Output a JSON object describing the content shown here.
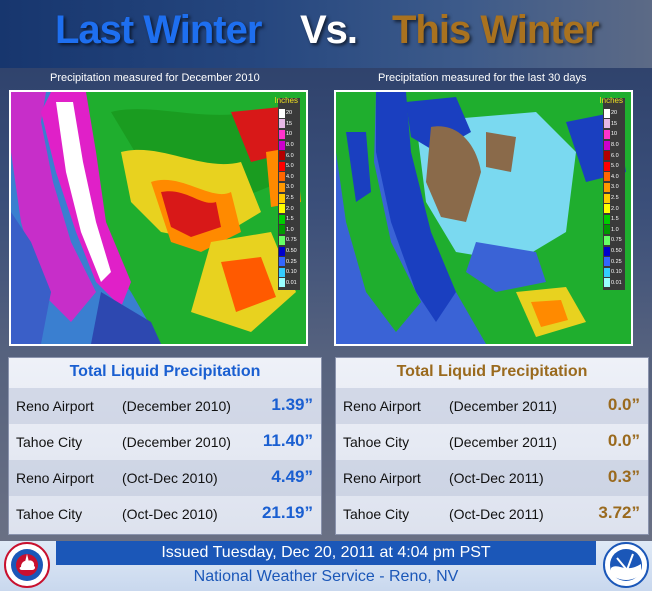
{
  "header": {
    "left_title": "Last Winter",
    "vs_label": "Vs.",
    "right_title": "This Winter"
  },
  "maps": {
    "left_caption": "Precipitation measured for December 2010",
    "right_caption": "Precipitation measured for the last 30 days",
    "legend_title": "Inches",
    "legend_levels": [
      "20",
      "15",
      "10",
      "8.0",
      "6.0",
      "5.0",
      "4.0",
      "3.0",
      "2.5",
      "2.0",
      "1.5",
      "1.0",
      "0.75",
      "0.50",
      "0.25",
      "0.10",
      "0.01"
    ],
    "legend_colors": [
      "#ffffff",
      "#e6b8e6",
      "#ff33cc",
      "#cc00cc",
      "#b30000",
      "#ff0000",
      "#ff6600",
      "#ff9900",
      "#ffcc00",
      "#ffff00",
      "#00cc00",
      "#009900",
      "#66ff66",
      "#0000cc",
      "#3366ff",
      "#33ccff",
      "#99ffff"
    ]
  },
  "left_panel": {
    "title": "Total Liquid Precipitation",
    "rows": [
      {
        "location": "Reno Airport",
        "period": "(December 2010)",
        "value": "1.39”"
      },
      {
        "location": "Tahoe City",
        "period": "(December 2010)",
        "value": "11.40”"
      },
      {
        "location": "Reno Airport",
        "period": "(Oct-Dec 2010)",
        "value": "4.49”"
      },
      {
        "location": "Tahoe City",
        "period": "(Oct-Dec 2010)",
        "value": "21.19”"
      }
    ]
  },
  "right_panel": {
    "title": "Total Liquid Precipitation",
    "rows": [
      {
        "location": "Reno Airport",
        "period": "(December 2011)",
        "value": "0.0”"
      },
      {
        "location": "Tahoe City",
        "period": "(December 2011)",
        "value": "0.0”"
      },
      {
        "location": "Reno Airport",
        "period": "(Oct-Dec 2011)",
        "value": "0.3”"
      },
      {
        "location": "Tahoe City",
        "period": "(Oct-Dec 2011)",
        "value": "3.72”"
      }
    ]
  },
  "footer": {
    "issued": "Issued Tuesday, Dec 20, 2011 at 4:04 pm PST",
    "office": "National Weather Service - Reno, NV"
  },
  "logos": {
    "left": "nws-logo",
    "right": "noaa-logo"
  }
}
